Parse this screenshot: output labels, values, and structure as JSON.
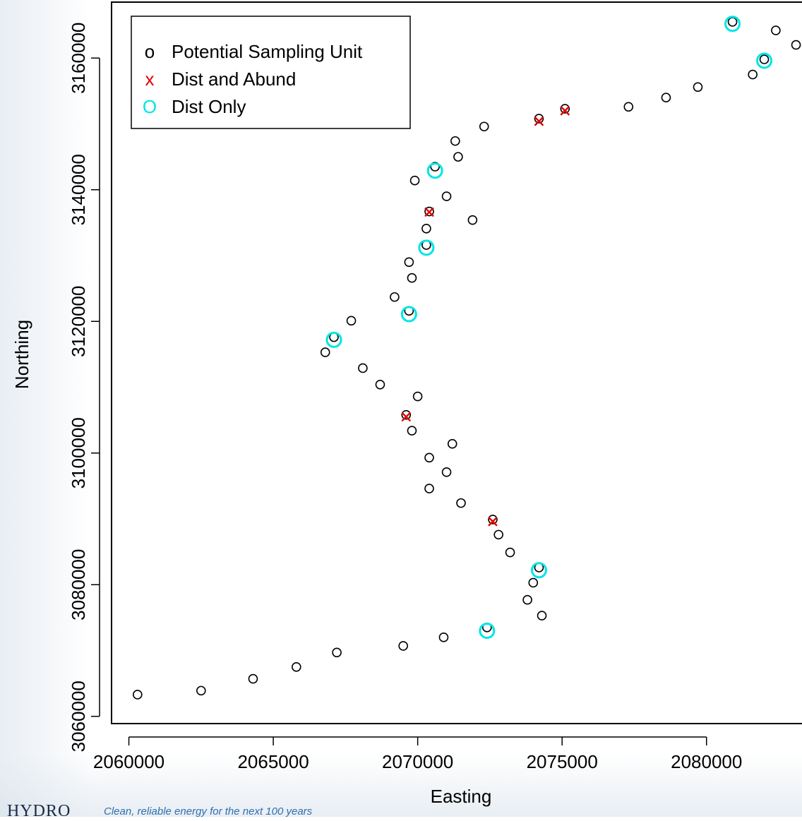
{
  "footer": {
    "brand": "HYDRO",
    "tagline": "Clean, reliable energy for the next 100 years"
  },
  "chart_data": {
    "type": "scatter",
    "xlabel": "Easting",
    "ylabel": "Northing",
    "xlim": [
      2059400,
      2083600
    ],
    "ylim": [
      3058900,
      3168500
    ],
    "xticks": [
      2060000,
      2065000,
      2070000,
      2075000,
      2080000
    ],
    "xtick_labels": [
      "2060000",
      "2065000",
      "2070000",
      "2075000",
      "2080000"
    ],
    "yticks": [
      3060000,
      3080000,
      3100000,
      3120000,
      3140000,
      3160000
    ],
    "ytick_labels": [
      "3060000",
      "3080000",
      "3100000",
      "3120000",
      "3140000",
      "3160000"
    ],
    "grid": false,
    "legend_position": "top-left",
    "colors": {
      "potential": "#000000",
      "dist_abund": "#e00000",
      "dist_only": "#00e5e5"
    },
    "series": [
      {
        "name": "Potential Sampling Unit",
        "marker": "o",
        "points": [
          [
            2060300,
            3063300
          ],
          [
            2062500,
            3063900
          ],
          [
            2064300,
            3065700
          ],
          [
            2065800,
            3067500
          ],
          [
            2067200,
            3069700
          ],
          [
            2069500,
            3070700
          ],
          [
            2070900,
            3072000
          ],
          [
            2072400,
            3073500
          ],
          [
            2074300,
            3075300
          ],
          [
            2073800,
            3077700
          ],
          [
            2074000,
            3080300
          ],
          [
            2074200,
            3082600
          ],
          [
            2073200,
            3084900
          ],
          [
            2072800,
            3087600
          ],
          [
            2072600,
            3089900
          ],
          [
            2071500,
            3092400
          ],
          [
            2070400,
            3094600
          ],
          [
            2071000,
            3097100
          ],
          [
            2070400,
            3099300
          ],
          [
            2071200,
            3101400
          ],
          [
            2069800,
            3103400
          ],
          [
            2069600,
            3105800
          ],
          [
            2070000,
            3108600
          ],
          [
            2068700,
            3110400
          ],
          [
            2068100,
            3112900
          ],
          [
            2066800,
            3115300
          ],
          [
            2067100,
            3117600
          ],
          [
            2067700,
            3120100
          ],
          [
            2069700,
            3121600
          ],
          [
            2069200,
            3123700
          ],
          [
            2069800,
            3126600
          ],
          [
            2069700,
            3129000
          ],
          [
            2070300,
            3131600
          ],
          [
            2070300,
            3134100
          ],
          [
            2071900,
            3135400
          ],
          [
            2070400,
            3136700
          ],
          [
            2071000,
            3139000
          ],
          [
            2069900,
            3141400
          ],
          [
            2070600,
            3143500
          ],
          [
            2071400,
            3145000
          ],
          [
            2071300,
            3147400
          ],
          [
            2072300,
            3149600
          ],
          [
            2074200,
            3150800
          ],
          [
            2075100,
            3152300
          ],
          [
            2077300,
            3152600
          ],
          [
            2078600,
            3154000
          ],
          [
            2079700,
            3155600
          ],
          [
            2081600,
            3157500
          ],
          [
            2082000,
            3159800
          ],
          [
            2083100,
            3162000
          ],
          [
            2082400,
            3164200
          ],
          [
            2080900,
            3165500
          ]
        ]
      },
      {
        "name": "Dist and Abund",
        "marker": "x",
        "points": [
          [
            2075100,
            3152000
          ],
          [
            2074200,
            3150400
          ],
          [
            2070400,
            3136600
          ],
          [
            2069600,
            3105500
          ],
          [
            2072600,
            3089600
          ]
        ]
      },
      {
        "name": "Dist Only",
        "marker": "O",
        "points": [
          [
            2080900,
            3165200
          ],
          [
            2082000,
            3159600
          ],
          [
            2070600,
            3142900
          ],
          [
            2070300,
            3131200
          ],
          [
            2069700,
            3121100
          ],
          [
            2067100,
            3117200
          ],
          [
            2074200,
            3082200
          ],
          [
            2072400,
            3073000
          ]
        ]
      }
    ]
  }
}
